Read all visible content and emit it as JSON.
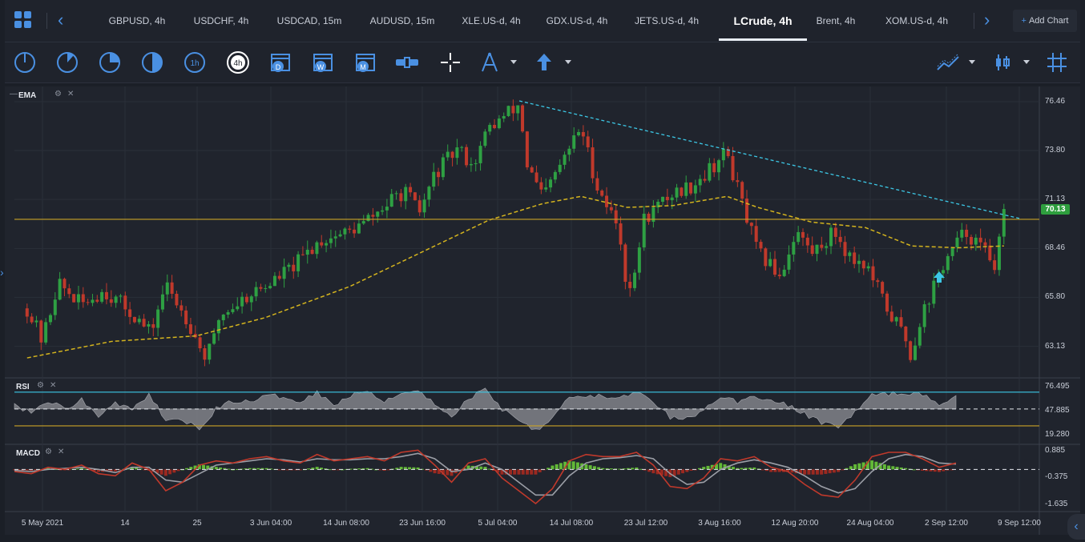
{
  "tabs": [
    {
      "label": "GBPUSD, 4h"
    },
    {
      "label": "USDCHF, 4h"
    },
    {
      "label": "USDCAD, 15m"
    },
    {
      "label": "AUDUSD, 15m"
    },
    {
      "label": "XLE.US-d, 4h"
    },
    {
      "label": "GDX.US-d, 4h"
    },
    {
      "label": "JETS.US-d, 4h"
    },
    {
      "label": "LCrude, 4h"
    },
    {
      "label": "Brent, 4h"
    },
    {
      "label": "XOM.US-d, 4h"
    }
  ],
  "add_chart": "Add Chart",
  "toolbar": {
    "timeframe_icons": [
      "1m-icon",
      "5m-icon",
      "15m-icon",
      "30m-icon",
      "1h-icon",
      "4h-icon",
      "daily-icon",
      "weekly-icon",
      "monthly-icon"
    ],
    "labels": {
      "h1": "1h",
      "h4": "4h",
      "d": "D",
      "w": "W",
      "m": "M"
    }
  },
  "colors": {
    "bull": "#2ea043",
    "bear": "#c0392b",
    "ema": "#d4b41e",
    "trend": "#3cc8e6",
    "support": "#c9a227",
    "rsi_fill": "#8d8f95",
    "accent": "#4a90e2"
  },
  "chart_data": [
    {
      "type": "candlestick",
      "title": "",
      "indicator": "EMA",
      "x_ticks": [
        "5 May 2021",
        "14",
        "25",
        "3 Jun 04:00",
        "14 Jun 08:00",
        "23 Jun 16:00",
        "5 Jul 04:00",
        "14 Jul 08:00",
        "23 Jul 12:00",
        "3 Aug 16:00",
        "12 Aug 20:00",
        "24 Aug 04:00",
        "2 Sep 12:00",
        "9 Sep 12:00"
      ],
      "y_ticks": [
        "76.46",
        "73.80",
        "71.13",
        "68.46",
        "65.80",
        "63.13"
      ],
      "ylim": [
        61.5,
        77.2
      ],
      "last_price": "70.13",
      "close_path": [
        {
          "date": "2021-05-03",
          "close": 65.2
        },
        {
          "date": "2021-05-05",
          "close": 63.4
        },
        {
          "date": "2021-05-07",
          "close": 66.6
        },
        {
          "date": "2021-05-10",
          "close": 65.4
        },
        {
          "date": "2021-05-13",
          "close": 66.2
        },
        {
          "date": "2021-05-17",
          "close": 64.8
        },
        {
          "date": "2021-05-19",
          "close": 63.8
        },
        {
          "date": "2021-05-21",
          "close": 66.5
        },
        {
          "date": "2021-05-24",
          "close": 64.5
        },
        {
          "date": "2021-05-26",
          "close": 62.6
        },
        {
          "date": "2021-05-27",
          "close": 63.0
        },
        {
          "date": "2021-05-28",
          "close": 64.8
        },
        {
          "date": "2021-06-01",
          "close": 66.0
        },
        {
          "date": "2021-06-03",
          "close": 66.4
        },
        {
          "date": "2021-06-07",
          "close": 67.6
        },
        {
          "date": "2021-06-10",
          "close": 68.9
        },
        {
          "date": "2021-06-14",
          "close": 69.4
        },
        {
          "date": "2021-06-16",
          "close": 69.9
        },
        {
          "date": "2021-06-21",
          "close": 71.6
        },
        {
          "date": "2021-06-23",
          "close": 70.4
        },
        {
          "date": "2021-06-25",
          "close": 72.5
        },
        {
          "date": "2021-06-28",
          "close": 73.9
        },
        {
          "date": "2021-06-30",
          "close": 73.0
        },
        {
          "date": "2021-07-02",
          "close": 75.0
        },
        {
          "date": "2021-07-06",
          "close": 76.3
        },
        {
          "date": "2021-07-07",
          "close": 73.0
        },
        {
          "date": "2021-07-09",
          "close": 71.2
        },
        {
          "date": "2021-07-12",
          "close": 73.5
        },
        {
          "date": "2021-07-14",
          "close": 75.1
        },
        {
          "date": "2021-07-16",
          "close": 72.0
        },
        {
          "date": "2021-07-19",
          "close": 69.5
        },
        {
          "date": "2021-07-20",
          "close": 66.2
        },
        {
          "date": "2021-07-21",
          "close": 66.8
        },
        {
          "date": "2021-07-22",
          "close": 70.0
        },
        {
          "date": "2021-07-26",
          "close": 71.5
        },
        {
          "date": "2021-07-28",
          "close": 71.8
        },
        {
          "date": "2021-07-30",
          "close": 72.5
        },
        {
          "date": "2021-08-02",
          "close": 73.7
        },
        {
          "date": "2021-08-03",
          "close": 72.2
        },
        {
          "date": "2021-08-05",
          "close": 69.5
        },
        {
          "date": "2021-08-06",
          "close": 68.2
        },
        {
          "date": "2021-08-09",
          "close": 67.0
        },
        {
          "date": "2021-08-11",
          "close": 69.5
        },
        {
          "date": "2021-08-13",
          "close": 68.2
        },
        {
          "date": "2021-08-16",
          "close": 69.4
        },
        {
          "date": "2021-08-18",
          "close": 68.0
        },
        {
          "date": "2021-08-20",
          "close": 67.6
        },
        {
          "date": "2021-08-23",
          "close": 65.0
        },
        {
          "date": "2021-08-25",
          "close": 63.8
        },
        {
          "date": "2021-08-26",
          "close": 62.5
        },
        {
          "date": "2021-08-27",
          "close": 64.5
        },
        {
          "date": "2021-08-30",
          "close": 67.5
        },
        {
          "date": "2021-09-01",
          "close": 68.8
        },
        {
          "date": "2021-09-02",
          "close": 69.4
        },
        {
          "date": "2021-09-03",
          "close": 69.0
        },
        {
          "date": "2021-09-06",
          "close": 67.6
        },
        {
          "date": "2021-09-07",
          "close": 70.3
        }
      ],
      "ema_path": [
        {
          "date": "2021-05-03",
          "value": 62.5
        },
        {
          "date": "2021-05-14",
          "value": 63.4
        },
        {
          "date": "2021-05-25",
          "value": 63.7
        },
        {
          "date": "2021-06-03",
          "value": 64.7
        },
        {
          "date": "2021-06-14",
          "value": 66.4
        },
        {
          "date": "2021-06-23",
          "value": 68.2
        },
        {
          "date": "2021-07-02",
          "value": 70.0
        },
        {
          "date": "2021-07-09",
          "value": 70.9
        },
        {
          "date": "2021-07-14",
          "value": 71.3
        },
        {
          "date": "2021-07-20",
          "value": 70.7
        },
        {
          "date": "2021-07-26",
          "value": 70.8
        },
        {
          "date": "2021-08-02",
          "value": 71.3
        },
        {
          "date": "2021-08-06",
          "value": 70.7
        },
        {
          "date": "2021-08-13",
          "value": 69.9
        },
        {
          "date": "2021-08-20",
          "value": 69.6
        },
        {
          "date": "2021-08-26",
          "value": 68.6
        },
        {
          "date": "2021-09-01",
          "value": 68.5
        },
        {
          "date": "2021-09-07",
          "value": 68.6
        }
      ],
      "trendline": [
        {
          "date": "2021-07-06",
          "value": 76.5
        },
        {
          "date": "2021-09-09",
          "value": 70.1
        }
      ],
      "support_level": 70.05
    },
    {
      "type": "area",
      "title": "",
      "indicator": "RSI",
      "y_ticks": [
        "76.495",
        "47.885",
        "19.280"
      ],
      "levels": [
        70,
        30,
        50
      ],
      "values": [
        55,
        45,
        60,
        50,
        62,
        40,
        58,
        48,
        66,
        38,
        35,
        28,
        50,
        60,
        58,
        66,
        64,
        60,
        70,
        55,
        66,
        72,
        60,
        68,
        74,
        55,
        40,
        62,
        74,
        50,
        38,
        25,
        40,
        66,
        64,
        66,
        62,
        70,
        58,
        40,
        38,
        48,
        66,
        58,
        66,
        60,
        54,
        44,
        34,
        30,
        46,
        66,
        68,
        70,
        66,
        56,
        66
      ]
    },
    {
      "type": "line",
      "title": "",
      "indicator": "MACD",
      "y_ticks": [
        "0.885",
        "-0.375",
        "-1.635"
      ],
      "macd": [
        -0.1,
        -0.2,
        0.1,
        0.0,
        0.2,
        -0.2,
        -0.3,
        0.3,
        0.0,
        -1.0,
        -0.6,
        0.2,
        0.4,
        0.3,
        0.5,
        0.6,
        0.4,
        0.3,
        0.7,
        0.4,
        0.5,
        0.6,
        0.4,
        0.8,
        0.9,
        0.2,
        -0.6,
        0.3,
        0.5,
        -0.4,
        -1.0,
        -1.6,
        -0.9,
        0.4,
        0.7,
        0.6,
        0.6,
        0.8,
        0.2,
        -0.8,
        -0.9,
        -0.4,
        0.5,
        0.4,
        0.6,
        0.1,
        -0.1,
        -0.7,
        -1.2,
        -1.3,
        -0.5,
        0.6,
        0.8,
        0.8,
        0.5,
        0.1,
        0.3
      ],
      "signal": [
        -0.05,
        -0.1,
        0.0,
        0.05,
        0.1,
        0.0,
        -0.15,
        0.1,
        0.1,
        -0.5,
        -0.6,
        -0.2,
        0.2,
        0.3,
        0.4,
        0.5,
        0.45,
        0.35,
        0.5,
        0.45,
        0.45,
        0.5,
        0.5,
        0.6,
        0.75,
        0.5,
        -0.1,
        0.0,
        0.3,
        0.0,
        -0.6,
        -1.2,
        -1.2,
        -0.3,
        0.3,
        0.5,
        0.55,
        0.65,
        0.5,
        -0.2,
        -0.7,
        -0.6,
        0.0,
        0.3,
        0.45,
        0.3,
        0.1,
        -0.3,
        -0.8,
        -1.1,
        -0.9,
        -0.1,
        0.5,
        0.7,
        0.6,
        0.3,
        0.25
      ]
    }
  ]
}
